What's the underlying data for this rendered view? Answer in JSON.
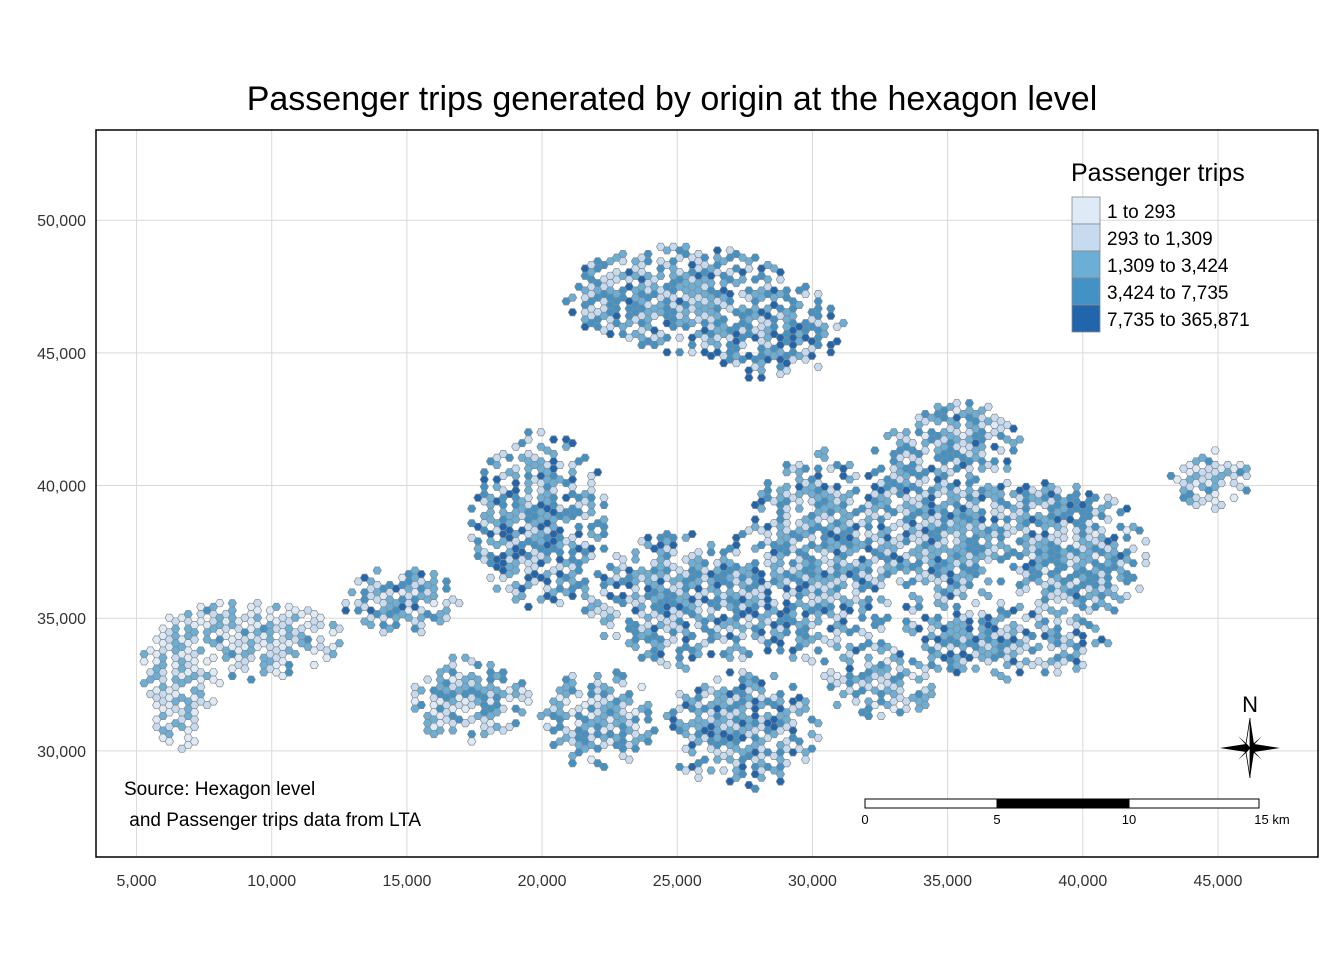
{
  "title": "Passenger trips generated by origin at the hexagon level",
  "map": {
    "x_ticks": [
      "5,000",
      "10,000",
      "15,000",
      "20,000",
      "25,000",
      "30,000",
      "35,000",
      "40,000",
      "45,000"
    ],
    "y_ticks": [
      "30,000",
      "35,000",
      "40,000",
      "45,000",
      "50,000"
    ],
    "x_tick_values": [
      5000,
      10000,
      15000,
      20000,
      25000,
      30000,
      35000,
      40000,
      45000
    ],
    "y_tick_values": [
      30000,
      35000,
      40000,
      45000,
      50000
    ],
    "xlim": [
      3500,
      48700
    ],
    "ylim": [
      26000,
      53400
    ],
    "grid": true
  },
  "legend": {
    "title": "Passenger trips",
    "placement": "top-right",
    "classes": [
      {
        "label": "1 to 293",
        "color": "#deebf7"
      },
      {
        "label": "293 to 1,309",
        "color": "#c6dbef"
      },
      {
        "label": "1,309 to 3,424",
        "color": "#6baed6"
      },
      {
        "label": "3,424 to 7,735",
        "color": "#4292c6"
      },
      {
        "label": "7,735 to 365,871",
        "color": "#2166ac"
      }
    ]
  },
  "credits": {
    "line1": "Source: Hexagon level",
    "line2": " and Passenger trips data from LTA"
  },
  "scale_bar": {
    "labels": [
      "0",
      "5",
      "10",
      "15 km"
    ]
  },
  "compass": {
    "label": "N"
  }
}
